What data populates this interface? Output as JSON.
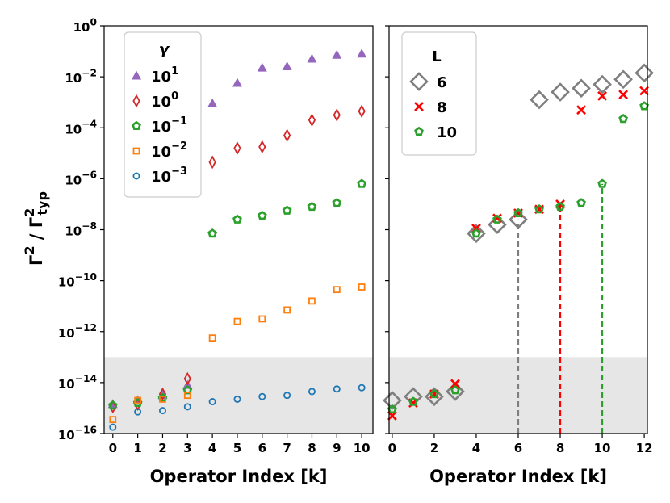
{
  "chart_data": [
    {
      "panel": "left",
      "type": "scatter",
      "yscale": "log",
      "xlabel": "Operator Index [k]",
      "ylabel": "Γ² / Γ²_typ",
      "ylabel_main": "Γ",
      "ylabel_sub": "typ",
      "xlim": [
        -0.35,
        10.45
      ],
      "ylim_exp": [
        -16,
        0
      ],
      "xticks": [
        "0",
        "1",
        "2",
        "3",
        "4",
        "5",
        "6",
        "7",
        "8",
        "9",
        "10"
      ],
      "yticks": [
        {
          "base": "10",
          "exp": "0"
        },
        {
          "base": "10",
          "exp": "−2"
        },
        {
          "base": "10",
          "exp": "−4"
        },
        {
          "base": "10",
          "exp": "−6"
        },
        {
          "base": "10",
          "exp": "−8"
        },
        {
          "base": "10",
          "exp": "−10"
        },
        {
          "base": "10",
          "exp": "−12"
        },
        {
          "base": "10",
          "exp": "−14"
        },
        {
          "base": "10",
          "exp": "−16"
        }
      ],
      "shaded_region_exp": [
        -16,
        -13
      ],
      "legend": {
        "title": "γ",
        "position": "top-left"
      },
      "series": [
        {
          "name": "γ = 10^1",
          "label_base": "10",
          "label_exp": "1",
          "marker": "triangle",
          "color": "#9467bd",
          "x": [
            0,
            1,
            2,
            3,
            4,
            5,
            6,
            7,
            8,
            9,
            10
          ],
          "y_exp": [
            -14.85,
            -14.7,
            -14.5,
            -14.1,
            -3.05,
            -2.25,
            -1.65,
            -1.6,
            -1.3,
            -1.15,
            -1.1
          ]
        },
        {
          "name": "γ = 10^0",
          "label_base": "10",
          "label_exp": "0",
          "marker": "diamond",
          "color": "#d62728",
          "x": [
            0,
            1,
            2,
            3,
            4,
            5,
            6,
            7,
            8,
            9,
            10
          ],
          "y_exp": [
            -14.95,
            -14.85,
            -14.45,
            -13.85,
            -5.35,
            -4.8,
            -4.75,
            -4.3,
            -3.7,
            -3.5,
            -3.35
          ]
        },
        {
          "name": "γ = 10^-1",
          "label_base": "10",
          "label_exp": "−1",
          "marker": "pentagon",
          "color": "#2ca02c",
          "x": [
            0,
            1,
            2,
            3,
            4,
            5,
            6,
            7,
            8,
            9,
            10
          ],
          "y_exp": [
            -14.9,
            -14.8,
            -14.6,
            -14.3,
            -8.15,
            -7.6,
            -7.45,
            -7.25,
            -7.1,
            -6.95,
            -6.2
          ]
        },
        {
          "name": "γ = 10^-2",
          "label_base": "10",
          "label_exp": "−2",
          "marker": "square",
          "color": "#ff7f0e",
          "x": [
            0,
            1,
            2,
            3,
            4,
            5,
            6,
            7,
            8,
            9,
            10
          ],
          "y_exp": [
            -15.45,
            -14.7,
            -14.65,
            -14.5,
            -12.25,
            -11.6,
            -11.5,
            -11.15,
            -10.8,
            -10.35,
            -10.25
          ]
        },
        {
          "name": "γ = 10^-3",
          "label_base": "10",
          "label_exp": "−3",
          "marker": "circle",
          "color": "#1f77b4",
          "x": [
            0,
            1,
            2,
            3,
            4,
            5,
            6,
            7,
            8,
            9,
            10
          ],
          "y_exp": [
            -15.75,
            -15.15,
            -15.1,
            -14.95,
            -14.75,
            -14.65,
            -14.55,
            -14.5,
            -14.35,
            -14.25,
            -14.2
          ]
        }
      ]
    },
    {
      "panel": "right",
      "type": "scatter",
      "yscale": "log",
      "xlabel": "Operator Index [k]",
      "xlim": [
        -0.15,
        12.15
      ],
      "ylim_exp": [
        -16,
        0
      ],
      "xticks": [
        "0",
        "2",
        "4",
        "6",
        "8",
        "10",
        "12"
      ],
      "shaded_region_exp": [
        -16,
        -13
      ],
      "legend": {
        "title": "L",
        "position": "top-left"
      },
      "series": [
        {
          "name": "L = 6",
          "label": "6",
          "marker": "big-diamond",
          "color": "#7f7f7f",
          "x": [
            0,
            1,
            2,
            3,
            4,
            5,
            6,
            7,
            8,
            9,
            10,
            11,
            12
          ],
          "y_exp": [
            -14.7,
            -14.55,
            -14.55,
            -14.35,
            -8.15,
            -7.8,
            -7.6,
            -2.9,
            -2.6,
            -2.45,
            -2.3,
            -2.1,
            -1.85
          ]
        },
        {
          "name": "L = 8",
          "label": "8",
          "marker": "x",
          "color": "#ff0000",
          "x": [
            0,
            1,
            2,
            3,
            4,
            5,
            6,
            7,
            8,
            9,
            10,
            11,
            12
          ],
          "y_exp": [
            -15.3,
            -14.8,
            -14.45,
            -14.05,
            -7.95,
            -7.55,
            -7.35,
            -7.2,
            -7.0,
            -3.3,
            -2.75,
            -2.7,
            -2.55
          ]
        },
        {
          "name": "L = 10",
          "label": "10",
          "marker": "pentagon",
          "color": "#2ca02c",
          "x": [
            0,
            1,
            2,
            3,
            4,
            5,
            6,
            7,
            8,
            9,
            10,
            11,
            12
          ],
          "y_exp": [
            -15.05,
            -14.75,
            -14.45,
            -14.3,
            -8.15,
            -7.6,
            -7.35,
            -7.2,
            -7.1,
            -6.95,
            -6.2,
            -3.65,
            -3.15
          ]
        }
      ],
      "dashed_lines": [
        {
          "x": 6,
          "y_top_exp": -7.6,
          "color": "#7f7f7f"
        },
        {
          "x": 8,
          "y_top_exp": -7.0,
          "color": "#ff0000"
        },
        {
          "x": 10,
          "y_top_exp": -6.2,
          "color": "#2ca02c"
        }
      ]
    }
  ]
}
